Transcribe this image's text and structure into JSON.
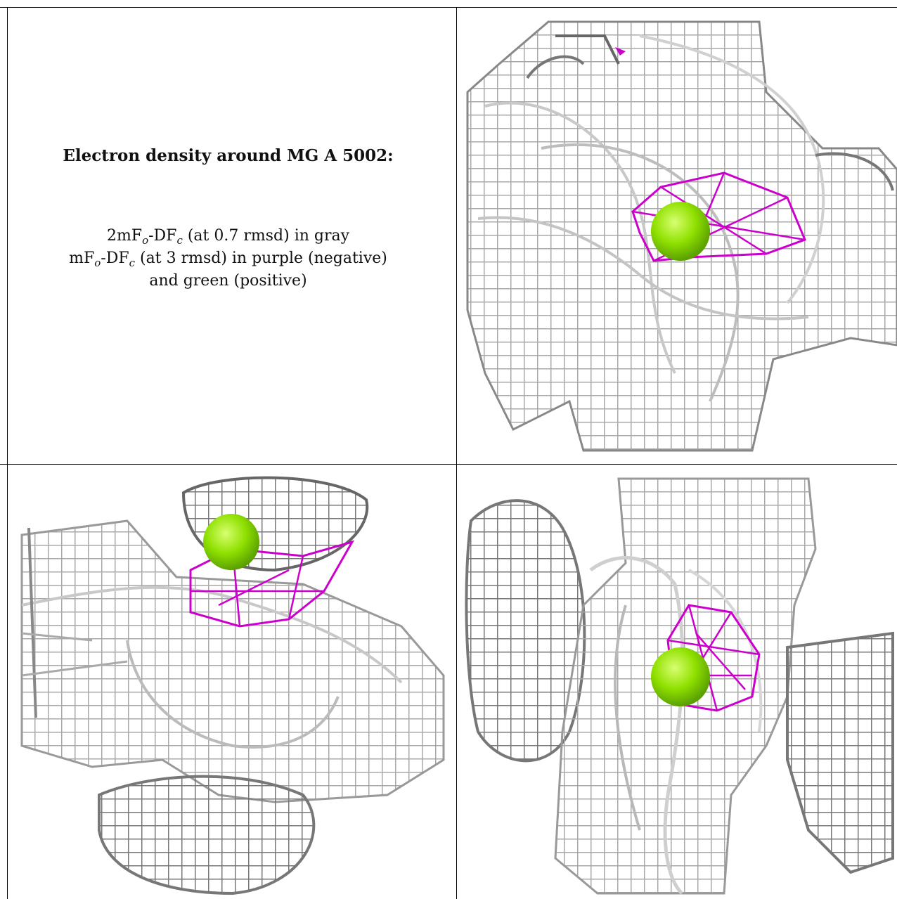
{
  "caption": {
    "title": "Electron density around MG A 5002:",
    "line1": {
      "pre": "2mF",
      "sub1": "o",
      "mid": "-DF",
      "sub2": "c",
      "post": " (at 0.7 rmsd) in gray"
    },
    "line2": {
      "pre": "mF",
      "sub1": "o",
      "mid": "-DF",
      "sub2": "c",
      "post": " (at 3 rmsd) in purple (negative)"
    },
    "line3": "and green (positive)"
  },
  "panels": [
    {
      "id": "view-1",
      "has_negative_mesh": true
    },
    {
      "id": "view-2",
      "has_negative_mesh": true
    },
    {
      "id": "view-3",
      "has_negative_mesh": true
    }
  ],
  "colors": {
    "mesh_gray": "#9a9a9a",
    "negative_purple": "#cc00cc",
    "positive_green": "#7ddc1f",
    "atom_green": "#8fe000"
  }
}
